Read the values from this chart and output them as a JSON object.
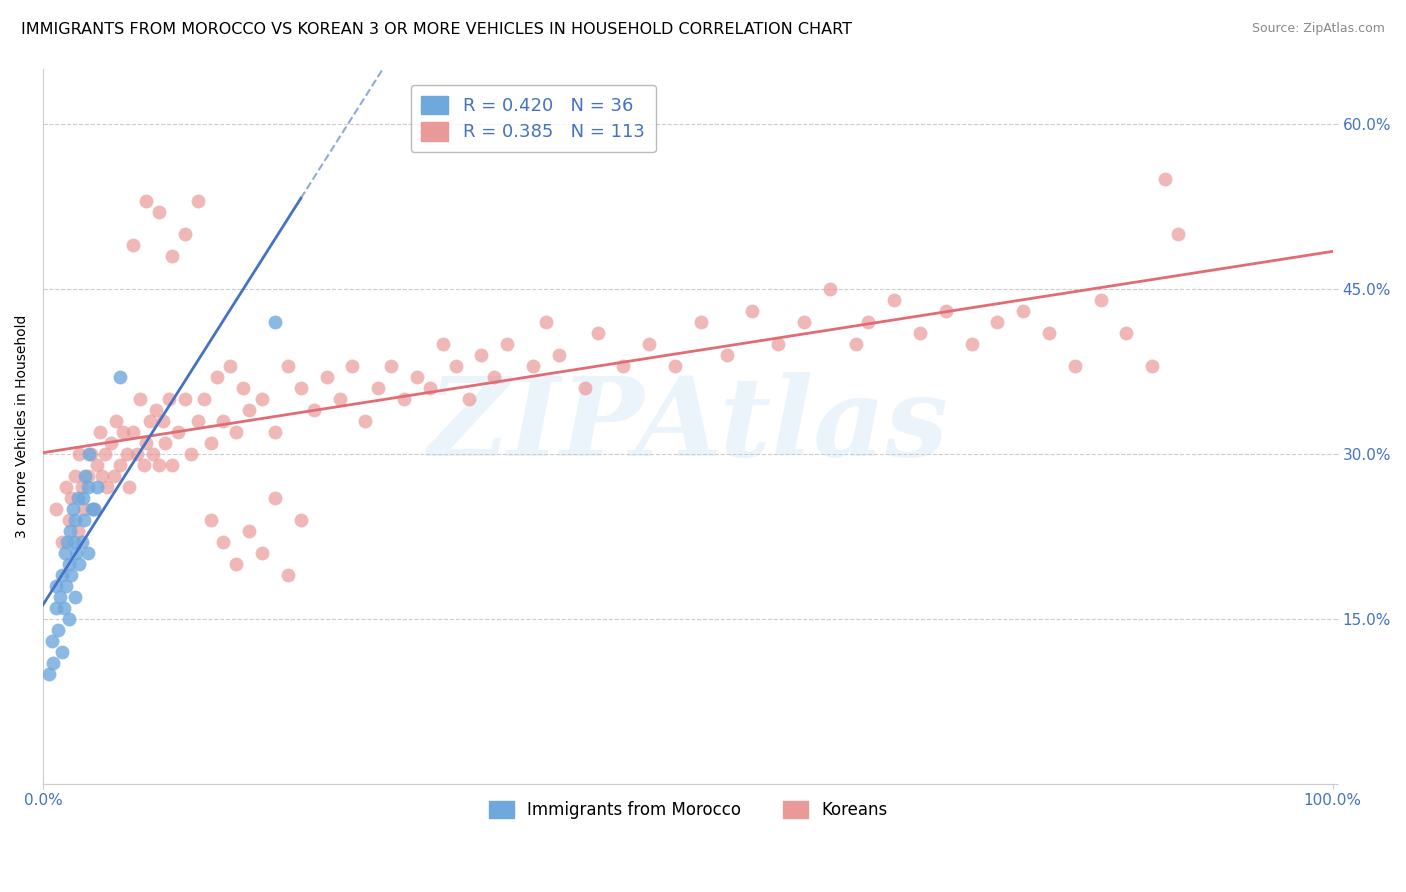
{
  "title": "IMMIGRANTS FROM MOROCCO VS KOREAN 3 OR MORE VEHICLES IN HOUSEHOLD CORRELATION CHART",
  "source": "Source: ZipAtlas.com",
  "ylabel": "3 or more Vehicles in Household",
  "xlim": [
    0.0,
    1.0
  ],
  "ylim": [
    0.0,
    0.65
  ],
  "yticks": [
    0.0,
    0.15,
    0.3,
    0.45,
    0.6
  ],
  "ytick_labels": [
    "",
    "15.0%",
    "30.0%",
    "45.0%",
    "60.0%"
  ],
  "watermark": "ZIPAtlas",
  "legend_R1": "R = 0.420",
  "legend_N1": "N = 36",
  "legend_R2": "R = 0.385",
  "legend_N2": "N = 113",
  "color_blue": "#6fa8dc",
  "color_pink": "#ea9999",
  "color_line_blue": "#4472c4",
  "color_line_pink": "#e06c75",
  "color_text_blue": "#4472c4",
  "title_fontsize": 11.5,
  "axis_label_fontsize": 10,
  "tick_fontsize": 11,
  "morocco_x": [
    0.005,
    0.007,
    0.008,
    0.01,
    0.01,
    0.012,
    0.013,
    0.015,
    0.015,
    0.016,
    0.017,
    0.018,
    0.019,
    0.02,
    0.02,
    0.021,
    0.022,
    0.023,
    0.024,
    0.025,
    0.025,
    0.026,
    0.027,
    0.028,
    0.03,
    0.031,
    0.032,
    0.033,
    0.035,
    0.035,
    0.036,
    0.038,
    0.04,
    0.042,
    0.06,
    0.18
  ],
  "morocco_y": [
    0.1,
    0.13,
    0.11,
    0.16,
    0.18,
    0.14,
    0.17,
    0.12,
    0.19,
    0.16,
    0.21,
    0.18,
    0.22,
    0.15,
    0.2,
    0.23,
    0.19,
    0.25,
    0.22,
    0.17,
    0.24,
    0.21,
    0.26,
    0.2,
    0.22,
    0.26,
    0.24,
    0.28,
    0.21,
    0.27,
    0.3,
    0.25,
    0.25,
    0.27,
    0.37,
    0.42
  ],
  "korean_x": [
    0.01,
    0.015,
    0.018,
    0.02,
    0.022,
    0.025,
    0.027,
    0.028,
    0.03,
    0.032,
    0.035,
    0.037,
    0.04,
    0.042,
    0.044,
    0.046,
    0.048,
    0.05,
    0.053,
    0.055,
    0.057,
    0.06,
    0.062,
    0.065,
    0.067,
    0.07,
    0.073,
    0.075,
    0.078,
    0.08,
    0.083,
    0.085,
    0.088,
    0.09,
    0.093,
    0.095,
    0.098,
    0.1,
    0.105,
    0.11,
    0.115,
    0.12,
    0.125,
    0.13,
    0.135,
    0.14,
    0.145,
    0.15,
    0.155,
    0.16,
    0.17,
    0.18,
    0.19,
    0.2,
    0.21,
    0.22,
    0.23,
    0.24,
    0.25,
    0.26,
    0.27,
    0.28,
    0.29,
    0.3,
    0.31,
    0.32,
    0.33,
    0.34,
    0.35,
    0.36,
    0.38,
    0.39,
    0.4,
    0.42,
    0.43,
    0.45,
    0.47,
    0.49,
    0.51,
    0.53,
    0.55,
    0.57,
    0.59,
    0.61,
    0.63,
    0.64,
    0.66,
    0.68,
    0.7,
    0.72,
    0.74,
    0.76,
    0.78,
    0.8,
    0.82,
    0.84,
    0.86,
    0.87,
    0.88,
    0.07,
    0.08,
    0.09,
    0.1,
    0.11,
    0.12,
    0.13,
    0.14,
    0.15,
    0.16,
    0.17,
    0.18,
    0.19,
    0.2
  ],
  "korean_y": [
    0.25,
    0.22,
    0.27,
    0.24,
    0.26,
    0.28,
    0.23,
    0.3,
    0.27,
    0.25,
    0.28,
    0.3,
    0.25,
    0.29,
    0.32,
    0.28,
    0.3,
    0.27,
    0.31,
    0.28,
    0.33,
    0.29,
    0.32,
    0.3,
    0.27,
    0.32,
    0.3,
    0.35,
    0.29,
    0.31,
    0.33,
    0.3,
    0.34,
    0.29,
    0.33,
    0.31,
    0.35,
    0.29,
    0.32,
    0.35,
    0.3,
    0.33,
    0.35,
    0.31,
    0.37,
    0.33,
    0.38,
    0.32,
    0.36,
    0.34,
    0.35,
    0.32,
    0.38,
    0.36,
    0.34,
    0.37,
    0.35,
    0.38,
    0.33,
    0.36,
    0.38,
    0.35,
    0.37,
    0.36,
    0.4,
    0.38,
    0.35,
    0.39,
    0.37,
    0.4,
    0.38,
    0.42,
    0.39,
    0.36,
    0.41,
    0.38,
    0.4,
    0.38,
    0.42,
    0.39,
    0.43,
    0.4,
    0.42,
    0.45,
    0.4,
    0.42,
    0.44,
    0.41,
    0.43,
    0.4,
    0.42,
    0.43,
    0.41,
    0.38,
    0.44,
    0.41,
    0.38,
    0.55,
    0.5,
    0.49,
    0.53,
    0.52,
    0.48,
    0.5,
    0.53,
    0.24,
    0.22,
    0.2,
    0.23,
    0.21,
    0.26,
    0.19,
    0.24
  ]
}
